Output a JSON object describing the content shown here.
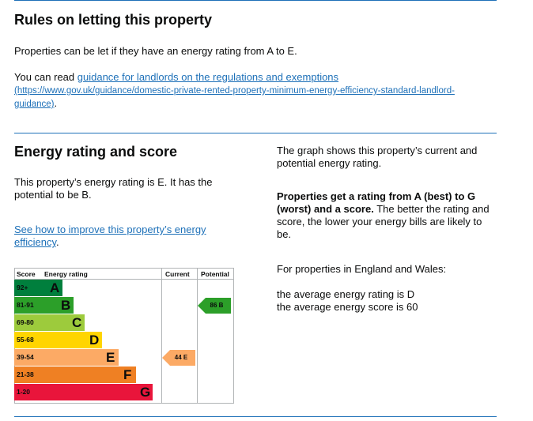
{
  "rules": {
    "heading": "Rules on letting this property",
    "p1": "Properties can be let if they have an energy rating from A to E.",
    "p2_prefix": "You can read ",
    "p2_link": "guidance for landlords on the regulations and exemptions",
    "p2_url_line1": "(https://www.gov.uk/guidance/domestic-private-rented-property-minimum-energy-efficiency-standard-landlord-",
    "p2_url_line2": "guidance)",
    "p2_suffix": "."
  },
  "energy": {
    "heading": "Energy rating and score",
    "summary": "This property’s energy rating is E. It has the potential to be B.",
    "improve_link": "See how to improve this property’s energy efficiency",
    "improve_suffix": "."
  },
  "side": {
    "graph_text": "The graph shows this property’s current and potential energy rating.",
    "bold": "Properties get a rating from A (best) to G (worst) and a score.",
    "rest": " The better the rating and score, the lower your energy bills are likely to be.",
    "region": "For properties in England and Wales:",
    "avg_rating": "the average energy rating is D",
    "avg_score": "the average energy score is 60"
  },
  "chart_data": {
    "type": "table",
    "headers": {
      "score": "Score",
      "rating": "Energy rating",
      "current": "Current",
      "potential": "Potential"
    },
    "bands": [
      {
        "score": "92+",
        "letter": "A",
        "color": "#007f3d",
        "width": 0.2
      },
      {
        "score": "81-91",
        "letter": "B",
        "color": "#2c9f29",
        "width": 0.3
      },
      {
        "score": "69-80",
        "letter": "C",
        "color": "#9dcb3c",
        "width": 0.4
      },
      {
        "score": "55-68",
        "letter": "D",
        "color": "#ffd500",
        "width": 0.55
      },
      {
        "score": "39-54",
        "letter": "E",
        "color": "#fcaa65",
        "width": 0.7
      },
      {
        "score": "21-38",
        "letter": "F",
        "color": "#ef8023",
        "width": 0.85
      },
      {
        "score": "1-20",
        "letter": "G",
        "color": "#e9153b",
        "width": 1.0
      }
    ],
    "current": {
      "score": 44,
      "letter": "E",
      "label": "44 E",
      "color": "#fcaa65"
    },
    "potential": {
      "score": 86,
      "letter": "B",
      "label": "86 B",
      "color": "#2c9f29"
    }
  }
}
